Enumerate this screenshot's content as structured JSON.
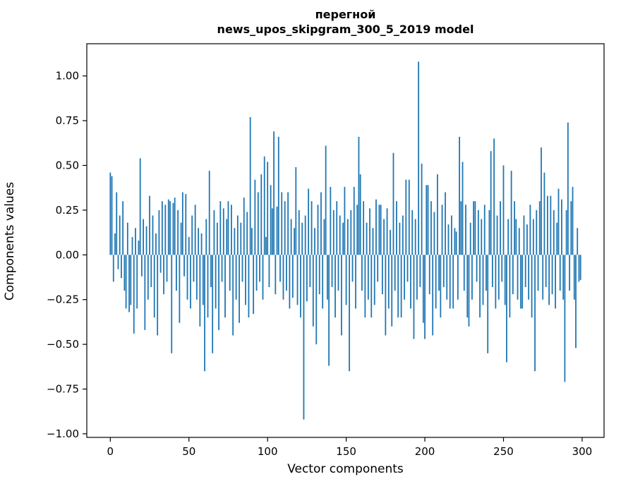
{
  "title": {
    "line1": "перегной",
    "line2": "news_upos_skipgram_300_5_2019 model"
  },
  "chart_data": {
    "type": "bar",
    "title": "перегной — news_upos_skipgram_300_5_2019 model",
    "xlabel": "Vector components",
    "ylabel": "Components values",
    "bar_color": "#1f77b4",
    "axis_color": "#000000",
    "xlim": [
      -14.95,
      313.95
    ],
    "ylim": [
      -1.02,
      1.18
    ],
    "xticks": [
      0,
      50,
      100,
      150,
      200,
      250,
      300
    ],
    "xtick_labels": [
      "0",
      "50",
      "100",
      "150",
      "200",
      "250",
      "300"
    ],
    "yticks": [
      1.0,
      0.75,
      0.5,
      0.25,
      0.0,
      -0.25,
      -0.5,
      -0.75,
      -1.0
    ],
    "ytick_labels": [
      "1.00",
      "0.75",
      "0.50",
      "0.25",
      "0.00",
      "−0.25",
      "−0.50",
      "−0.75",
      "−1.00"
    ],
    "grid": false,
    "legend": null,
    "values": [
      0.46,
      0.44,
      -0.15,
      0.12,
      0.35,
      -0.08,
      0.22,
      -0.13,
      0.3,
      -0.2,
      -0.3,
      0.18,
      -0.32,
      -0.28,
      0.1,
      -0.44,
      0.15,
      -0.3,
      0.08,
      0.54,
      -0.12,
      0.2,
      -0.42,
      0.16,
      -0.25,
      0.33,
      -0.18,
      0.22,
      -0.35,
      0.12,
      -0.45,
      0.25,
      -0.1,
      0.3,
      -0.22,
      0.28,
      -0.15,
      0.31,
      0.3,
      -0.55,
      0.29,
      0.32,
      -0.2,
      0.25,
      -0.38,
      0.18,
      0.35,
      -0.12,
      0.34,
      -0.25,
      0.1,
      -0.3,
      0.22,
      -0.15,
      0.28,
      -0.25,
      0.15,
      -0.4,
      0.12,
      -0.28,
      -0.65,
      0.2,
      -0.35,
      0.47,
      -0.18,
      -0.55,
      0.25,
      -0.3,
      0.18,
      -0.42,
      0.3,
      -0.15,
      0.26,
      -0.35,
      0.2,
      0.3,
      -0.2,
      0.28,
      -0.45,
      0.15,
      -0.25,
      0.22,
      -0.38,
      0.18,
      -0.15,
      0.32,
      -0.28,
      0.24,
      -0.35,
      0.77,
      0.15,
      -0.33,
      0.42,
      -0.2,
      0.35,
      -0.15,
      0.45,
      -0.25,
      0.55,
      0.1,
      0.52,
      -0.18,
      0.39,
      0.26,
      0.69,
      -0.22,
      0.27,
      0.66,
      -0.15,
      0.35,
      -0.25,
      0.3,
      -0.2,
      0.35,
      -0.3,
      0.2,
      -0.24,
      0.15,
      0.49,
      -0.28,
      0.25,
      -0.35,
      0.18,
      -0.92,
      0.22,
      -0.26,
      0.37,
      -0.18,
      0.3,
      -0.4,
      0.15,
      -0.5,
      0.28,
      -0.22,
      0.35,
      -0.3,
      0.2,
      0.61,
      -0.25,
      -0.62,
      0.38,
      -0.18,
      0.25,
      -0.35,
      0.3,
      -0.2,
      0.22,
      -0.45,
      0.18,
      0.38,
      -0.28,
      0.2,
      -0.65,
      0.25,
      -0.15,
      0.38,
      -0.3,
      0.28,
      0.66,
      0.45,
      -0.2,
      0.3,
      -0.35,
      0.18,
      -0.25,
      0.26,
      -0.35,
      0.15,
      -0.28,
      0.31,
      -0.15,
      0.28,
      0.28,
      -0.22,
      0.2,
      -0.45,
      0.26,
      -0.3,
      0.14,
      -0.4,
      0.57,
      -0.2,
      0.3,
      -0.35,
      0.18,
      -0.35,
      0.22,
      -0.25,
      0.42,
      -0.15,
      0.42,
      -0.3,
      0.25,
      -0.47,
      0.2,
      -0.25,
      1.08,
      -0.18,
      0.51,
      -0.38,
      -0.47,
      0.39,
      0.39,
      -0.22,
      0.3,
      -0.45,
      0.24,
      -0.3,
      0.45,
      -0.2,
      -0.35,
      0.28,
      -0.18,
      0.35,
      -0.25,
      0.17,
      -0.3,
      0.22,
      -0.3,
      0.15,
      0.13,
      -0.25,
      0.66,
      0.3,
      0.52,
      -0.2,
      0.28,
      -0.35,
      -0.4,
      0.18,
      -0.25,
      0.3,
      0.3,
      -0.15,
      0.25,
      -0.35,
      0.2,
      -0.28,
      0.28,
      -0.2,
      -0.55,
      0.25,
      0.58,
      -0.18,
      0.65,
      -0.3,
      0.22,
      -0.25,
      0.3,
      -0.15,
      0.5,
      -0.28,
      -0.6,
      0.2,
      -0.35,
      0.47,
      -0.22,
      0.3,
      0.2,
      -0.25,
      0.15,
      -0.3,
      -0.3,
      0.22,
      -0.18,
      0.17,
      -0.25,
      0.28,
      -0.35,
      0.2,
      -0.65,
      0.25,
      -0.2,
      0.3,
      0.6,
      -0.25,
      0.46,
      -0.18,
      0.33,
      -0.28,
      0.33,
      -0.22,
      0.25,
      -0.3,
      0.18,
      0.37,
      -0.2,
      0.31,
      -0.25,
      -0.71,
      0.25,
      0.74,
      -0.2,
      0.3,
      0.38,
      -0.25,
      -0.52,
      0.15,
      -0.15,
      -0.14
    ]
  }
}
